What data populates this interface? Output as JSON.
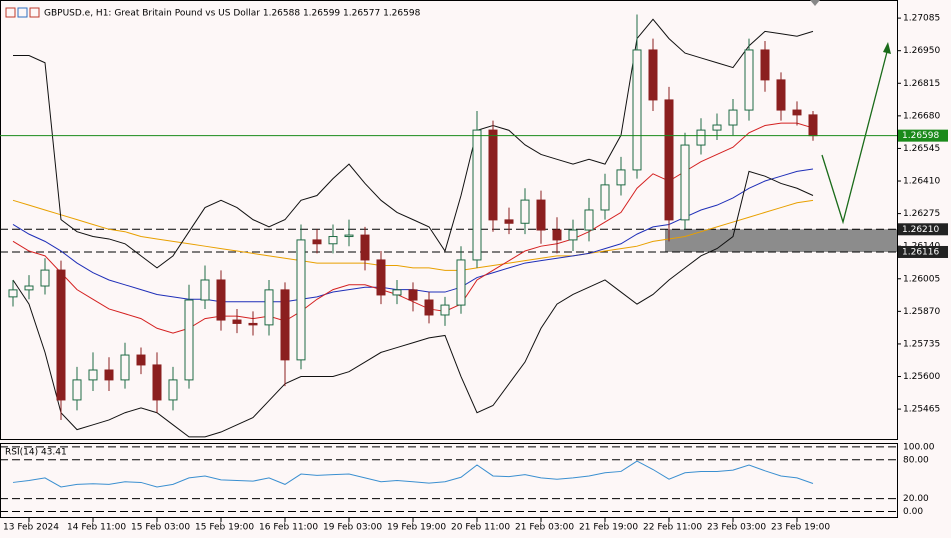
{
  "chart_data": {
    "type": "candlestick",
    "title": "GBPUSD.e, H1:  Great Britain Pound vs US Dollar  1.26588 1.26599 1.26577 1.26598",
    "categories": [
      null,
      "13 Feb 2024",
      null,
      null,
      null,
      "14 Feb 11:00",
      null,
      null,
      null,
      "15 Feb 03:00",
      null,
      null,
      null,
      "15 Feb 19:00",
      null,
      null,
      null,
      "16 Feb 11:00",
      null,
      null,
      null,
      "19 Feb 03:00",
      null,
      null,
      null,
      "19 Feb 19:00",
      null,
      null,
      null,
      "20 Feb 11:00",
      null,
      null,
      null,
      "21 Feb 03:00",
      null,
      null,
      null,
      "21 Feb 19:00",
      null,
      null,
      null,
      "22 Feb 11:00",
      null,
      null,
      null,
      "23 Feb 03:00",
      null,
      null,
      null,
      "23 Feb 19:00",
      null
    ],
    "open": [
      1.2593,
      1.25959,
      1.25975,
      1.26041,
      1.25503,
      1.25586,
      1.25627,
      1.25586,
      1.25689,
      1.25648,
      1.25503,
      1.25586,
      1.25917,
      1.26,
      1.25834,
      1.2582,
      1.25814,
      1.25959,
      1.25669,
      1.26166,
      1.2615,
      1.2618,
      1.26186,
      1.26083,
      1.25938,
      1.25959,
      1.25917,
      1.25855,
      1.25896,
      1.26083,
      1.26621,
      1.26249,
      1.26235,
      1.26331,
      1.26207,
      1.26166,
      1.26207,
      1.2629,
      1.26394,
      1.26456,
      1.26953,
      1.26746,
      1.26249,
      1.26559,
      1.26621,
      1.26642,
      1.26704,
      1.26953,
      1.26829,
      1.26704,
      1.26684
    ],
    "high": [
      1.26,
      1.2602,
      1.2609,
      1.2608,
      1.2564,
      1.257,
      1.2568,
      1.2574,
      1.2572,
      1.257,
      1.2564,
      1.2598,
      1.2606,
      1.2604,
      1.2588,
      1.2587,
      1.26,
      1.2599,
      1.2623,
      1.2621,
      1.2623,
      1.2625,
      1.2622,
      1.2612,
      1.26,
      1.2599,
      1.2595,
      1.2593,
      1.2614,
      1.267,
      1.2666,
      1.263,
      1.2638,
      1.2637,
      1.2626,
      1.2625,
      1.2634,
      1.2644,
      1.2651,
      1.271,
      1.27,
      1.268,
      1.2661,
      1.2667,
      1.2669,
      1.2675,
      1.27,
      1.2699,
      1.2686,
      1.2674,
      1.267
    ],
    "low": [
      1.2589,
      1.2592,
      1.2594,
      1.2542,
      1.2546,
      1.2554,
      1.2554,
      1.2555,
      1.2561,
      1.2545,
      1.2546,
      1.2555,
      1.2588,
      1.2579,
      1.2578,
      1.2577,
      1.2577,
      1.2556,
      1.2563,
      1.2611,
      1.2611,
      1.2614,
      1.2604,
      1.259,
      1.259,
      1.2587,
      1.2582,
      1.2581,
      1.2586,
      1.2605,
      1.262,
      1.2619,
      1.2619,
      1.2615,
      1.2611,
      1.2612,
      1.2616,
      1.2625,
      1.2635,
      1.2642,
      1.267,
      1.2616,
      1.2621,
      1.2652,
      1.2658,
      1.266,
      1.2666,
      1.2678,
      1.2666,
      1.2664,
      1.26577
    ],
    "close": [
      1.25959,
      1.25975,
      1.26041,
      1.25503,
      1.25586,
      1.25627,
      1.25586,
      1.25689,
      1.25648,
      1.25503,
      1.25586,
      1.25917,
      1.26,
      1.25834,
      1.2582,
      1.25814,
      1.25959,
      1.25669,
      1.26166,
      1.2615,
      1.2618,
      1.26186,
      1.26083,
      1.25938,
      1.25959,
      1.25917,
      1.25855,
      1.25896,
      1.26083,
      1.26621,
      1.26249,
      1.26235,
      1.26331,
      1.26207,
      1.26166,
      1.26207,
      1.2629,
      1.26394,
      1.26456,
      1.26953,
      1.26746,
      1.26249,
      1.26559,
      1.26621,
      1.26642,
      1.26704,
      1.26953,
      1.26829,
      1.26704,
      1.26684,
      1.26598
    ],
    "up_color": "#1f6b45",
    "down_color": "#8b1f1f",
    "series": [
      {
        "color": "#e8a000",
        "values": [
          1.2633,
          1.2631,
          1.2629,
          1.2627,
          1.2625,
          1.2623,
          1.2621,
          1.262,
          1.2618,
          1.2617,
          1.2616,
          1.2615,
          1.2614,
          1.2613,
          1.2612,
          1.2611,
          1.261,
          1.2609,
          1.2608,
          1.2607,
          1.2607,
          1.2607,
          1.2607,
          1.2606,
          1.2606,
          1.2605,
          1.2605,
          1.2604,
          1.2604,
          1.2605,
          1.2606,
          1.2607,
          1.2608,
          1.2609,
          1.261,
          1.261,
          1.2611,
          1.2612,
          1.2613,
          1.2614,
          1.2616,
          1.2617,
          1.2618,
          1.262,
          1.2622,
          1.2624,
          1.2626,
          1.2628,
          1.263,
          1.2632,
          1.2633
        ]
      },
      {
        "color": "#1f2fb8",
        "values": [
          1.2623,
          1.2619,
          1.2616,
          1.2612,
          1.2607,
          1.2603,
          1.26,
          1.2598,
          1.2596,
          1.2594,
          1.2593,
          1.2592,
          1.2592,
          1.2591,
          1.2591,
          1.2591,
          1.2591,
          1.2591,
          1.2592,
          1.2593,
          1.2595,
          1.2596,
          1.2597,
          1.2597,
          1.2596,
          1.2596,
          1.2595,
          1.2595,
          1.2597,
          1.2601,
          1.2603,
          1.2605,
          1.2607,
          1.2608,
          1.2609,
          1.261,
          1.2611,
          1.2613,
          1.2615,
          1.2619,
          1.2622,
          1.2623,
          1.2626,
          1.2629,
          1.2631,
          1.2634,
          1.2638,
          1.2641,
          1.2643,
          1.2645,
          1.2646
        ]
      },
      {
        "color": "#d42020",
        "values": [
          1.2616,
          1.2612,
          1.261,
          1.2603,
          1.2596,
          1.2592,
          1.2588,
          1.2586,
          1.2584,
          1.258,
          1.2578,
          1.258,
          1.2584,
          1.2585,
          1.2585,
          1.2584,
          1.2585,
          1.2583,
          1.2587,
          1.2592,
          1.2596,
          1.2598,
          1.2598,
          1.2596,
          1.2594,
          1.2591,
          1.2588,
          1.2587,
          1.259,
          1.26,
          1.2604,
          1.2608,
          1.2612,
          1.2614,
          1.2615,
          1.2617,
          1.262,
          1.2624,
          1.2628,
          1.2638,
          1.2644,
          1.2641,
          1.2645,
          1.2649,
          1.2652,
          1.2655,
          1.2661,
          1.2664,
          1.2665,
          1.2665,
          1.2663
        ]
      },
      {
        "color": "#111111",
        "values": [
          1.2693,
          1.2693,
          1.269,
          1.2625,
          1.262,
          1.2618,
          1.2617,
          1.2615,
          1.261,
          1.2605,
          1.261,
          1.262,
          1.263,
          1.2633,
          1.263,
          1.2625,
          1.2622,
          1.2625,
          1.2633,
          1.2635,
          1.2642,
          1.2648,
          1.264,
          1.2633,
          1.2628,
          1.2625,
          1.2622,
          1.2612,
          1.2635,
          1.2662,
          1.2664,
          1.2662,
          1.2656,
          1.2652,
          1.265,
          1.2648,
          1.265,
          1.2648,
          1.266,
          1.27,
          1.2708,
          1.27,
          1.2694,
          1.2692,
          1.269,
          1.2688,
          1.2697,
          1.2703,
          1.2702,
          1.2701,
          1.2703
        ]
      },
      {
        "color": "#111111",
        "values": [
          1.26,
          1.259,
          1.257,
          1.2545,
          1.2538,
          1.254,
          1.2542,
          1.2545,
          1.2547,
          1.2545,
          1.254,
          1.2535,
          1.2535,
          1.2537,
          1.254,
          1.2543,
          1.255,
          1.2557,
          1.256,
          1.256,
          1.256,
          1.2562,
          1.2566,
          1.257,
          1.2572,
          1.2574,
          1.2576,
          1.2577,
          1.256,
          1.2545,
          1.2548,
          1.2557,
          1.2566,
          1.258,
          1.259,
          1.2594,
          1.2597,
          1.26,
          1.2595,
          1.259,
          1.2594,
          1.26,
          1.2605,
          1.261,
          1.2613,
          1.2618,
          1.2645,
          1.2643,
          1.264,
          1.2638,
          1.2635
        ]
      }
    ],
    "ylim": [
      1.25337,
      1.2716
    ],
    "yticks": [
      1.27085,
      {
        "value": 1.2695,
        "label": "1.26950"
      },
      1.26815,
      {
        "value": 1.2668,
        "label": "1.26680"
      },
      1.26545,
      {
        "value": 1.2641,
        "label": "1.26410"
      },
      1.26275,
      {
        "value": 1.2614,
        "label": "1.26140"
      },
      1.26005,
      {
        "value": 1.2587,
        "label": "1.25870"
      },
      1.25735,
      {
        "value": 1.256,
        "label": "1.25600"
      },
      1.25465
    ],
    "current_price": 1.26598,
    "current_color": "#1a8a1a",
    "levels": [
      {
        "value": 1.2621,
        "label": "1.26210"
      },
      1.26116
    ],
    "rsi": {
      "title": "RSI(14) 43.41",
      "color": "#3a8fd0",
      "values": [
        45,
        48,
        52,
        38,
        42,
        43,
        42,
        46,
        45,
        38,
        42,
        52,
        55,
        49,
        48,
        47,
        52,
        42,
        58,
        56,
        57,
        58,
        52,
        46,
        48,
        46,
        44,
        46,
        53,
        72,
        55,
        54,
        57,
        52,
        50,
        52,
        55,
        60,
        62,
        78,
        65,
        50,
        60,
        62,
        62,
        64,
        72,
        63,
        55,
        52,
        43.41
      ],
      "ylim": [
        -10,
        106
      ],
      "yticks": [
        {
          "value": 100,
          "label": "100.00"
        },
        {
          "value": 80,
          "label": "80.00"
        },
        {
          "value": 20,
          "label": "20.00"
        },
        {
          "value": 0,
          "label": "0.00"
        }
      ]
    }
  }
}
